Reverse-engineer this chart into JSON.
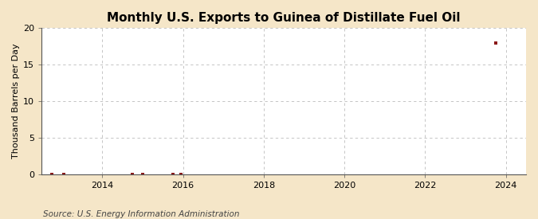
{
  "title": "Monthly U.S. Exports to Guinea of Distillate Fuel Oil",
  "ylabel": "Thousand Barrels per Day",
  "source": "Source: U.S. Energy Information Administration",
  "xlim": [
    2012.5,
    2024.5
  ],
  "ylim": [
    0,
    20
  ],
  "yticks": [
    0,
    5,
    10,
    15,
    20
  ],
  "xticks": [
    2014,
    2016,
    2018,
    2020,
    2022,
    2024
  ],
  "data_x": [
    2012.75,
    2013.05,
    2014.75,
    2015.0,
    2015.75,
    2015.95,
    2023.75
  ],
  "data_y": [
    0.05,
    0.05,
    0.05,
    0.05,
    0.05,
    0.05,
    18.0
  ],
  "marker_color": "#8B1A1A",
  "marker": "s",
  "marker_size": 3,
  "outer_background": "#F5E6C8",
  "plot_background": "#FFFFFF",
  "grid_color": "#BBBBBB",
  "grid_linestyle": "--",
  "title_fontsize": 11,
  "label_fontsize": 8,
  "tick_fontsize": 8,
  "source_fontsize": 7.5
}
